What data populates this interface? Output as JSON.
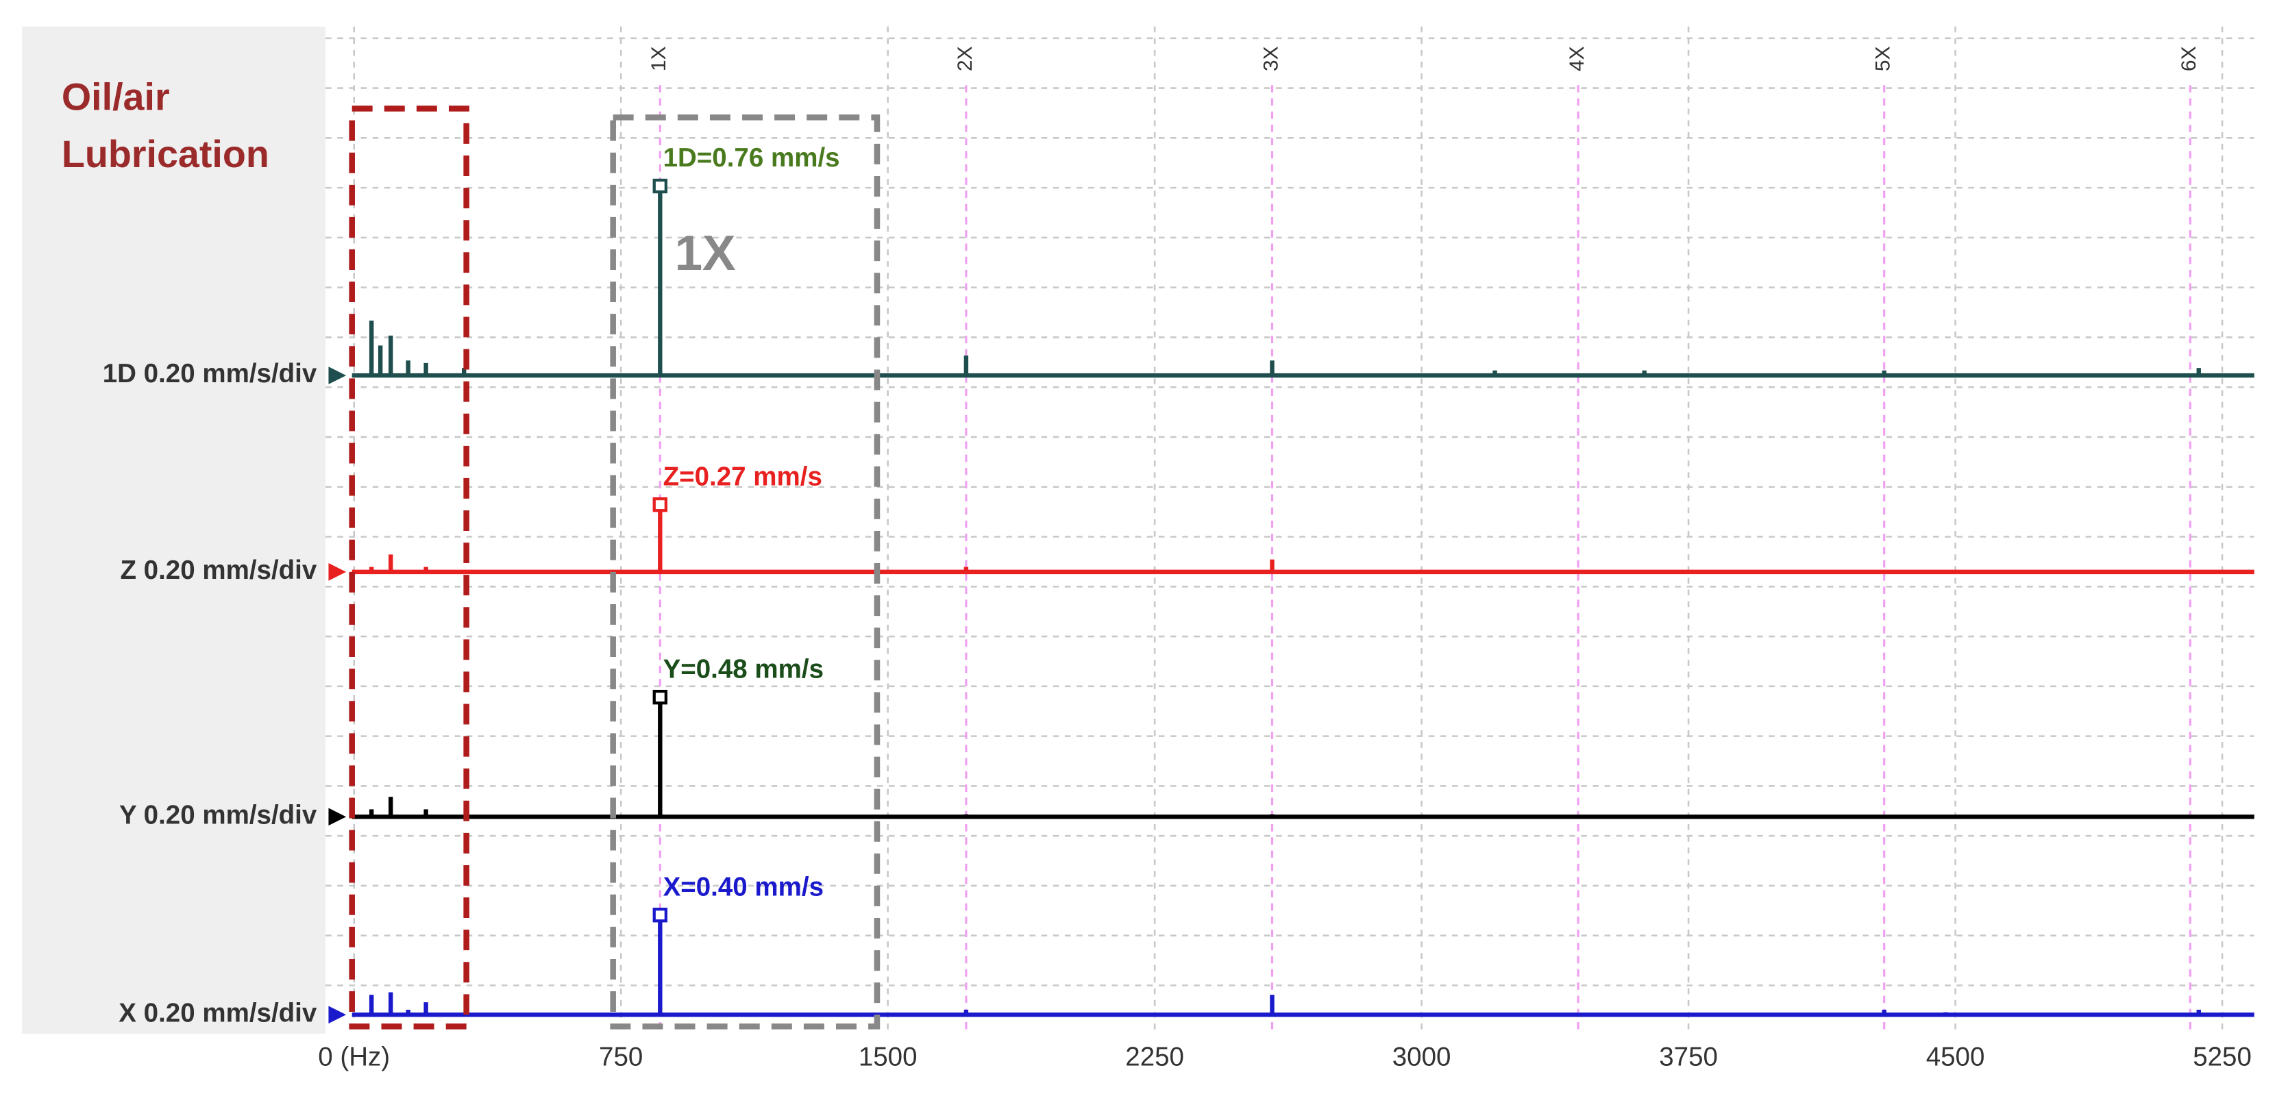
{
  "chart_data": {
    "type": "spectrum",
    "title_lines": [
      "Oil/air",
      "Lubrication"
    ],
    "box_label": "1X",
    "xlim": [
      -80,
      5340
    ],
    "xticks": [
      {
        "value": 0,
        "label": "0 (Hz)"
      },
      750,
      1500,
      2250,
      3000,
      3750,
      4500,
      5250
    ],
    "harmonics": [
      {
        "value": 860,
        "label": "1X"
      },
      {
        "value": 1720,
        "label": "2X"
      },
      {
        "value": 2580,
        "label": "3X"
      },
      {
        "value": 3440,
        "label": "4X"
      },
      {
        "value": 4300,
        "label": "5X"
      },
      {
        "value": 5160,
        "label": "6X"
      }
    ],
    "grid": true,
    "series": [
      {
        "name": "1D 0.20 mm/s/div",
        "color": "#1f4e4e",
        "label_color": "#4a7a1e",
        "peak_label": "1D=0.76 mm/s",
        "x": [
          49,
          74,
          103,
          152,
          202,
          309,
          860,
          1720,
          2580,
          3206,
          3626,
          4300,
          5184
        ],
        "values": [
          0.22,
          0.12,
          0.16,
          0.06,
          0.05,
          0.03,
          0.76,
          0.08,
          0.06,
          0.02,
          0.02,
          0.02,
          0.03
        ]
      },
      {
        "name": "Z 0.20 mm/s/div",
        "color": "#e82020",
        "label_color": "#e82020",
        "peak_label": "Z=0.27 mm/s",
        "x": [
          49,
          103,
          202,
          860,
          1720,
          2580
        ],
        "values": [
          0.02,
          0.07,
          0.02,
          0.27,
          0.02,
          0.05
        ]
      },
      {
        "name": "Y 0.20 mm/s/div",
        "color": "#000000",
        "label_color": "#1a4d1a",
        "peak_label": "Y=0.48 mm/s",
        "x": [
          49,
          103,
          202,
          860,
          1720,
          2580
        ],
        "values": [
          0.03,
          0.08,
          0.03,
          0.48,
          0.01,
          0.01
        ]
      },
      {
        "name": "X 0.20 mm/s/div",
        "color": "#1a1acc",
        "label_color": "#1a1acc",
        "peak_label": "X=0.40 mm/s",
        "x": [
          49,
          103,
          152,
          202,
          860,
          1720,
          2580,
          4300,
          4473,
          5184
        ],
        "values": [
          0.08,
          0.09,
          0.02,
          0.05,
          0.4,
          0.02,
          0.08,
          0.02,
          0.01,
          0.02
        ]
      }
    ]
  }
}
